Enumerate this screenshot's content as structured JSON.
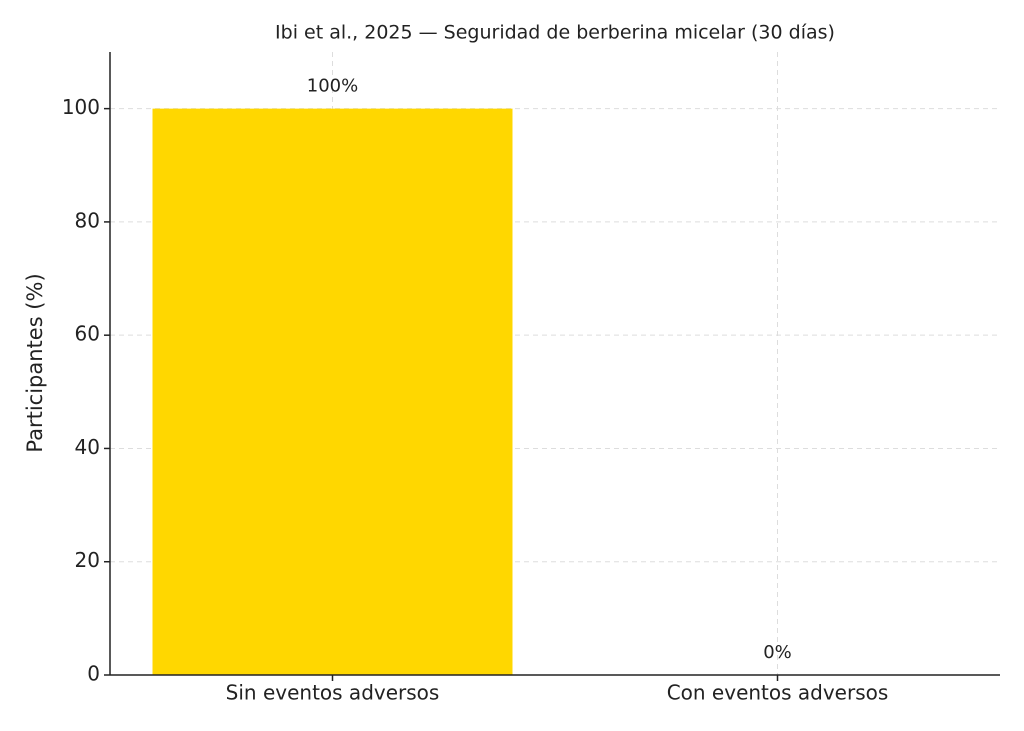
{
  "chart_data": {
    "type": "bar",
    "title": "Ibi et al., 2025 — Seguridad de berberina micelar (30 días)",
    "y_label": "Participantes (%)",
    "categories": [
      "Sin eventos adversos",
      "Con eventos adversos"
    ],
    "values": [
      100,
      0
    ],
    "value_labels": [
      "100%",
      "0%"
    ],
    "color": "#ffd700",
    "ylim": [
      0,
      110
    ],
    "yticks": [
      0,
      20,
      40,
      60,
      80,
      100
    ],
    "grid": true
  }
}
